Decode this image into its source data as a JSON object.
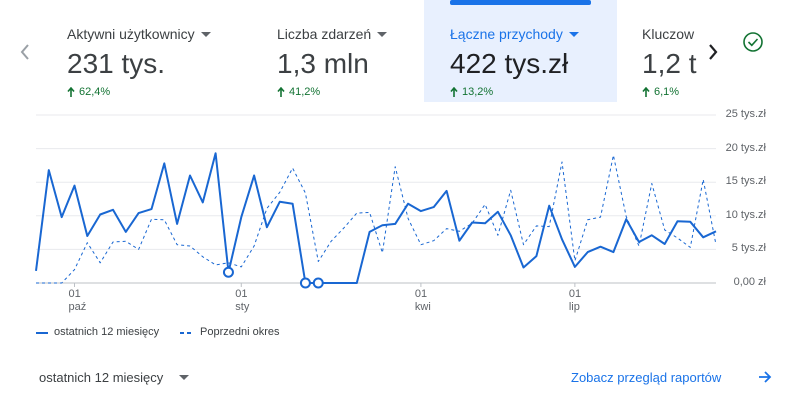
{
  "tabs": [
    {
      "title": "Aktywni użytkownicy",
      "value": "231 tys.",
      "change": "62,4%"
    },
    {
      "title": "Liczba zdarzeń",
      "value": "1,3 mln",
      "change": "41,2%"
    },
    {
      "title": "Łączne przychody",
      "value": "422 tys.zł",
      "change": "13,2%"
    },
    {
      "title": "Kluczow",
      "value": "1,2 t",
      "change": "6,1%"
    }
  ],
  "chart_data": {
    "type": "line",
    "categories": [
      null,
      null,
      null,
      "01\npaź",
      null,
      null,
      null,
      null,
      null,
      null,
      null,
      null,
      null,
      null,
      null,
      null,
      "01\nsty",
      null,
      null,
      null,
      null,
      null,
      null,
      null,
      null,
      null,
      null,
      null,
      null,
      null,
      "01\nkwi",
      null,
      null,
      null,
      null,
      null,
      null,
      null,
      null,
      null,
      null,
      null,
      "01\nlip",
      null,
      null,
      null,
      null,
      null,
      null,
      null,
      null,
      null,
      null,
      null
    ],
    "series": [
      {
        "name": "ostatnich 12 miesięcy",
        "color": "#1967d2",
        "line_style": "solid",
        "values": [
          1.8,
          16.8,
          9.8,
          14.5,
          7,
          10.2,
          10.9,
          7.6,
          10.4,
          11,
          17.8,
          8.8,
          16,
          12,
          19.3,
          1.6,
          9.8,
          16,
          8.3,
          12.1,
          11.8,
          0,
          0,
          0,
          0,
          0,
          7.6,
          8.6,
          8.8,
          11.8,
          10.7,
          11.3,
          13.7,
          6.3,
          9,
          8.9,
          10.6,
          7.1,
          2.3,
          4,
          11.5,
          6.5,
          2.4,
          4.6,
          5.4,
          4.6,
          9.5,
          6.1,
          7.1,
          5.8,
          9.2,
          9.1,
          6.8,
          7.7
        ]
      },
      {
        "name": "Poprzedni okres",
        "color": "#1967d2",
        "line_style": "dashed",
        "values": [
          0,
          0,
          0,
          2,
          6,
          3,
          6.1,
          6.2,
          5,
          9.5,
          9.4,
          5.7,
          5.5,
          3.9,
          2.7,
          3,
          2.4,
          5.5,
          11.1,
          13.5,
          17.1,
          13.4,
          3.2,
          6.2,
          8.2,
          10.4,
          10.5,
          4.5,
          17.3,
          9.6,
          5.7,
          6.3,
          8.1,
          7.7,
          8.9,
          11.7,
          7.1,
          13.8,
          5.7,
          8.5,
          8.4,
          18,
          3.3,
          9.4,
          9.8,
          19,
          9.9,
          5.5,
          14.8,
          7.9,
          6.7,
          5.3,
          15.4,
          5.7
        ]
      }
    ],
    "ylim": [
      0,
      25
    ],
    "yticks": [
      {
        "value": 0,
        "label": "0,00 zł"
      },
      {
        "value": 5,
        "label": "5 tys.zł"
      },
      {
        "value": 10,
        "label": "10 tys.zł"
      },
      {
        "value": 15,
        "label": "15 tys.zł"
      },
      {
        "value": 20,
        "label": "20 tys.zł"
      },
      {
        "value": 25,
        "label": "25 tys.zł"
      }
    ],
    "grid": true
  },
  "footer": {
    "period": "ostatnich 12 miesięcy",
    "link": "Zobacz przegląd raportów"
  }
}
